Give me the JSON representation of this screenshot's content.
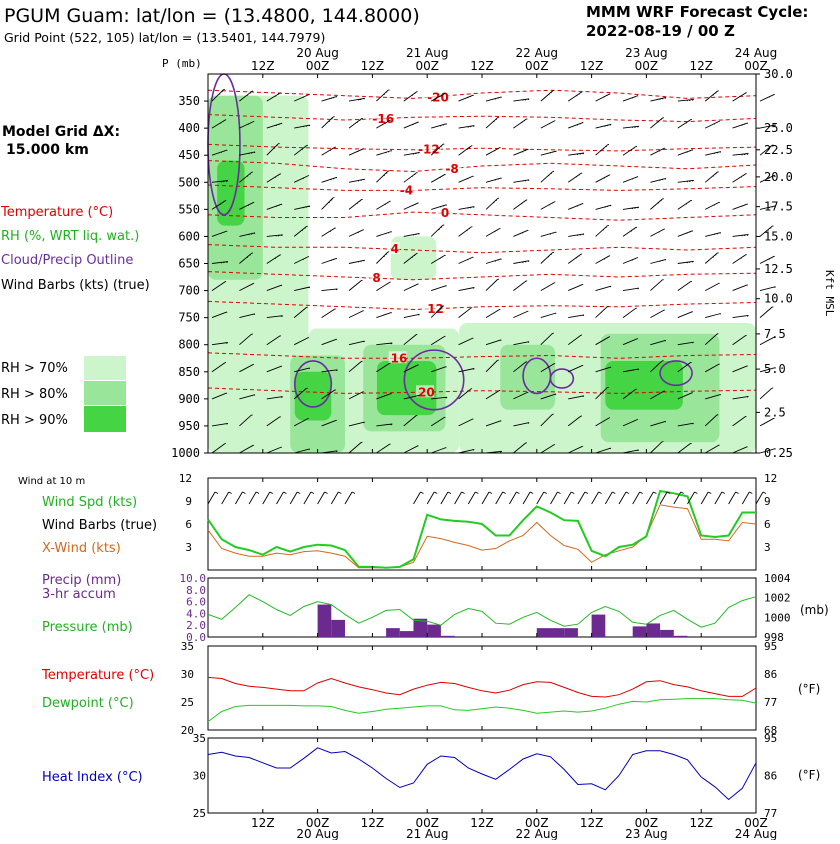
{
  "header": {
    "station_title": "PGUM Guam:  lat/lon = (13.4800, 144.8000)",
    "grid_point": "Grid Point (522, 105) lat/lon = (13.5401, 144.7979)",
    "model_title": "MMM WRF Forecast Cycle:",
    "cycle": "2022-08-19 / 00  Z",
    "model_grid_label": "Model Grid ΔX:",
    "model_grid_value": "15.000 km"
  },
  "legend": {
    "temperature": "Temperature (°C)",
    "rh": "RH (%, WRT liq. wat.)",
    "cloud": "Cloud/Precip Outline",
    "barbs": "Wind Barbs (kts) (true)",
    "rh70": "RH > 70%",
    "rh80": "RH > 80%",
    "rh90": "RH > 90%"
  },
  "colors": {
    "temperature": "#e00000",
    "rh70": "#ccf5cc",
    "rh80": "#99e599",
    "rh90": "#44d444",
    "cloud": "#6a2ca0",
    "wind_spd": "#22cc22",
    "xwind": "#d2691e",
    "precip": "#6a2a8e",
    "pressure": "#22bb22",
    "dewpoint": "#22cc22",
    "heat_index": "#0000bb"
  },
  "time_axis": {
    "hour_labels": [
      "12Z",
      "00Z",
      "12Z",
      "00Z",
      "12Z",
      "00Z",
      "12Z",
      "00Z",
      "12Z",
      "00Z"
    ],
    "hour_positions": [
      12,
      24,
      36,
      48,
      60,
      72,
      84,
      96,
      108,
      120
    ],
    "date_labels": [
      "20 Aug",
      "21 Aug",
      "22 Aug",
      "23 Aug",
      "24 Aug"
    ],
    "date_positions": [
      24,
      48,
      72,
      96,
      120
    ],
    "range": [
      0,
      120
    ]
  },
  "chart_data": [
    {
      "type": "heatmap",
      "name": "sounding",
      "xrange": [
        0,
        120
      ],
      "ylabel": "P (mb)",
      "right_label": "Kft MSL",
      "pressure_ticks": [
        350,
        400,
        450,
        500,
        550,
        600,
        650,
        700,
        750,
        800,
        850,
        900,
        950,
        1000
      ],
      "height_labels": [
        "30.0",
        "25.0",
        "22.5",
        "20.0",
        "17.5",
        "15.0",
        "12.5",
        "10.0",
        "7.5",
        "5.0",
        "2.5",
        "0.25"
      ],
      "height_label_pressures": [
        300,
        400,
        440,
        490,
        545,
        600,
        660,
        715,
        780,
        845,
        925,
        1000
      ],
      "temperature_contours": [
        {
          "label": "-20",
          "p": [
            330,
            335,
            340,
            345,
            335,
            330,
            335,
            345,
            340
          ],
          "label_t": 48
        },
        {
          "label": "-16",
          "p": [
            375,
            380,
            385,
            380,
            378,
            380,
            385,
            388,
            382
          ],
          "label_t": 36
        },
        {
          "label": "-12",
          "p": [
            430,
            435,
            438,
            440,
            437,
            440,
            442,
            438,
            435
          ],
          "label_t": 46
        },
        {
          "label": "-8",
          "p": [
            460,
            465,
            475,
            480,
            470,
            465,
            470,
            475,
            468
          ],
          "label_t": 52
        },
        {
          "label": "-4",
          "p": [
            505,
            510,
            515,
            515,
            510,
            512,
            515,
            512,
            508
          ],
          "label_t": 42
        },
        {
          "label": "0",
          "p": [
            560,
            565,
            565,
            555,
            560,
            565,
            570,
            565,
            560
          ],
          "label_t": 51
        },
        {
          "label": "4",
          "p": [
            615,
            620,
            620,
            625,
            630,
            625,
            620,
            625,
            620
          ],
          "label_t": 40
        },
        {
          "label": "8",
          "p": [
            665,
            670,
            675,
            680,
            675,
            670,
            675,
            670,
            668
          ],
          "label_t": 36
        },
        {
          "label": "12",
          "p": [
            720,
            725,
            730,
            735,
            730,
            728,
            730,
            725,
            722
          ],
          "label_t": 48
        },
        {
          "label": "16",
          "p": [
            815,
            820,
            825,
            825,
            822,
            820,
            825,
            820,
            818
          ],
          "label_t": 40
        },
        {
          "label": "20",
          "p": [
            880,
            885,
            890,
            888,
            885,
            887,
            890,
            886,
            884
          ],
          "label_t": 46
        }
      ],
      "contour_times": [
        0,
        15,
        30,
        45,
        60,
        75,
        90,
        105,
        120
      ],
      "rh_regions": [
        {
          "level": 70,
          "t0": 0,
          "t1": 22,
          "p0": 340,
          "p1": 1000
        },
        {
          "level": 70,
          "t0": 22,
          "t1": 55,
          "p0": 770,
          "p1": 1000
        },
        {
          "level": 70,
          "t0": 55,
          "t1": 120,
          "p0": 760,
          "p1": 1000
        },
        {
          "level": 70,
          "t0": 40,
          "t1": 50,
          "p0": 600,
          "p1": 680
        },
        {
          "level": 80,
          "t0": 0,
          "t1": 12,
          "p0": 340,
          "p1": 680
        },
        {
          "level": 80,
          "t0": 18,
          "t1": 30,
          "p0": 820,
          "p1": 1000
        },
        {
          "level": 80,
          "t0": 34,
          "t1": 52,
          "p0": 800,
          "p1": 960
        },
        {
          "level": 80,
          "t0": 64,
          "t1": 76,
          "p0": 800,
          "p1": 920
        },
        {
          "level": 80,
          "t0": 86,
          "t1": 112,
          "p0": 780,
          "p1": 980
        },
        {
          "level": 90,
          "t0": 2,
          "t1": 8,
          "p0": 460,
          "p1": 580
        },
        {
          "level": 90,
          "t0": 19,
          "t1": 27,
          "p0": 850,
          "p1": 940
        },
        {
          "level": 90,
          "t0": 37,
          "t1": 50,
          "p0": 830,
          "p1": 930
        },
        {
          "level": 90,
          "t0": 87,
          "t1": 104,
          "p0": 830,
          "p1": 920
        }
      ],
      "cloud_outlines": [
        {
          "t0": 0,
          "t1": 7,
          "p0": 300,
          "p1": 560
        },
        {
          "t0": 19,
          "t1": 27,
          "p0": 830,
          "p1": 915
        },
        {
          "t0": 43,
          "t1": 56,
          "p0": 810,
          "p1": 920
        },
        {
          "t0": 69,
          "t1": 75,
          "p0": 825,
          "p1": 890
        },
        {
          "t0": 75,
          "t1": 80,
          "p0": 845,
          "p1": 880
        },
        {
          "t0": 99,
          "t1": 106,
          "p0": 830,
          "p1": 875
        }
      ],
      "barb_times": [
        0,
        6,
        12,
        18,
        24,
        30,
        36,
        42,
        48,
        54,
        60,
        66,
        72,
        78,
        84,
        90,
        96,
        102,
        108,
        114,
        120
      ],
      "barb_pressures": [
        350,
        400,
        450,
        500,
        550,
        600,
        650,
        700,
        750,
        800,
        850,
        900,
        950,
        1000
      ],
      "barb_speed_low": 10,
      "barb_speed_high": 25
    },
    {
      "type": "line",
      "name": "wind",
      "title": "Wind at 10 m",
      "label_spd": "Wind Spd (kts)",
      "label_barbs": "Wind Barbs (true)",
      "label_xwind": "X-Wind (kts)",
      "ylim": [
        0,
        12
      ],
      "y_ticks": [
        3,
        6,
        9,
        12
      ],
      "x": [
        0,
        3,
        6,
        9,
        12,
        15,
        18,
        21,
        24,
        27,
        30,
        33,
        36,
        39,
        42,
        45,
        48,
        51,
        54,
        57,
        60,
        63,
        66,
        69,
        72,
        75,
        78,
        81,
        84,
        87,
        90,
        93,
        96,
        99,
        102,
        105,
        108,
        111,
        114,
        117,
        120
      ],
      "series": [
        {
          "name": "Wind Spd (kts)",
          "values": [
            6.6,
            4,
            3,
            2.6,
            2,
            3,
            2.4,
            3,
            3.3,
            3.2,
            2.6,
            0.4,
            0.4,
            0.3,
            0.4,
            1.4,
            7.2,
            6.6,
            6.4,
            6.3,
            6,
            4.5,
            4.5,
            6.5,
            8.3,
            7.5,
            6.5,
            6.4,
            2.5,
            1.8,
            3,
            3.3,
            4.4,
            10.3,
            10,
            9.6,
            4.5,
            4.3,
            4.5,
            7.5,
            7.5
          ]
        },
        {
          "name": "X-Wind (kts)",
          "values": [
            5.2,
            2.8,
            2.2,
            1.8,
            1.8,
            2.2,
            2,
            2.4,
            2.5,
            2.2,
            1.8,
            0.3,
            0.3,
            0.3,
            0.4,
            1,
            4.4,
            4.1,
            3.6,
            3.2,
            2.6,
            2.8,
            3.8,
            4.5,
            6.2,
            4.5,
            3.2,
            2.7,
            1,
            2,
            2.5,
            3,
            4.5,
            8.5,
            8.2,
            8,
            4,
            4,
            3.8,
            6.2,
            6
          ]
        }
      ]
    },
    {
      "type": "bar",
      "name": "precip_pressure",
      "label_precip": "Precip (mm)",
      "label_accum": "3-hr accum",
      "label_pressure": "Pressure (mb)",
      "unit_right": "(mb)",
      "precip_ylim": [
        0,
        10
      ],
      "precip_ticks": [
        "0.0",
        "2.0",
        "4.0",
        "6.0",
        "8.0",
        "10.0"
      ],
      "pressure_ylim": [
        998,
        1004
      ],
      "pressure_ticks": [
        "998",
        "1000",
        "1002",
        "1004"
      ],
      "precip_bars": [
        {
          "t": 25.5,
          "v": 5.5
        },
        {
          "t": 28.5,
          "v": 2.9
        },
        {
          "t": 40.5,
          "v": 1.5
        },
        {
          "t": 43.5,
          "v": 1
        },
        {
          "t": 46.5,
          "v": 3.1
        },
        {
          "t": 49.5,
          "v": 2.1
        },
        {
          "t": 52.5,
          "v": 0.2
        },
        {
          "t": 73.5,
          "v": 1.5
        },
        {
          "t": 76.5,
          "v": 1.5
        },
        {
          "t": 79.5,
          "v": 1.5
        },
        {
          "t": 85.5,
          "v": 3.8
        },
        {
          "t": 94.5,
          "v": 1.8
        },
        {
          "t": 97.5,
          "v": 2.3
        },
        {
          "t": 100.5,
          "v": 1.2
        },
        {
          "t": 103.5,
          "v": 0.2
        }
      ],
      "pressure_x": [
        0,
        3,
        6,
        9,
        12,
        15,
        18,
        21,
        24,
        27,
        30,
        33,
        36,
        39,
        42,
        45,
        48,
        51,
        54,
        57,
        60,
        63,
        66,
        69,
        72,
        75,
        78,
        81,
        84,
        87,
        90,
        93,
        96,
        99,
        102,
        105,
        108,
        111,
        114,
        117,
        120
      ],
      "pressure_values": [
        1000.3,
        999.8,
        1001.0,
        1002.3,
        1001.6,
        1000.8,
        1000.2,
        1001.1,
        1001.6,
        1001.3,
        1000.3,
        999.4,
        1000.0,
        1000.7,
        1000.8,
        999.7,
        999.6,
        999.2,
        1000.3,
        1000.9,
        1000.6,
        999.4,
        999.3,
        1000.0,
        1000.5,
        999.7,
        999.1,
        999.3,
        1000.5,
        1001.1,
        1000.6,
        999.5,
        999.3,
        1000.2,
        1000.7,
        999.8,
        999.0,
        999.4,
        1001.0,
        1001.7,
        1002.1
      ]
    },
    {
      "type": "line",
      "name": "temp_dew",
      "label_temp": "Temperature (°C)",
      "label_dew": "Dewpoint (°C)",
      "unit_right": "(°F)",
      "ylim": [
        20,
        35
      ],
      "y_ticks": [
        "20",
        "25",
        "30",
        "35"
      ],
      "y_right_ticks": [
        "68",
        "77",
        "86",
        "95"
      ],
      "x": [
        0,
        3,
        6,
        9,
        12,
        15,
        18,
        21,
        24,
        27,
        30,
        33,
        36,
        39,
        42,
        45,
        48,
        51,
        54,
        57,
        60,
        63,
        66,
        69,
        72,
        75,
        78,
        81,
        84,
        87,
        90,
        93,
        96,
        99,
        102,
        105,
        108,
        111,
        114,
        117,
        120
      ],
      "series": [
        {
          "name": "Temperature (°C)",
          "values": [
            29.4,
            29.2,
            28.3,
            27.8,
            27.6,
            27.3,
            27.0,
            27.0,
            28.4,
            29.2,
            28.4,
            27.7,
            27.2,
            26.6,
            26.3,
            27.3,
            28.0,
            28.5,
            28.3,
            27.6,
            27.0,
            26.6,
            27.1,
            28.1,
            28.6,
            28.5,
            27.6,
            26.7,
            26.0,
            25.9,
            26.3,
            27.3,
            28.6,
            28.8,
            28.1,
            27.7,
            27.0,
            26.5,
            26.0,
            26.0,
            27.5
          ]
        },
        {
          "name": "Dewpoint (°C)",
          "values": [
            21.5,
            23.3,
            24.2,
            24.4,
            24.4,
            24.4,
            24.4,
            24.3,
            24.3,
            24.2,
            23.5,
            23.0,
            23.3,
            23.7,
            23.9,
            24.1,
            24.3,
            24.3,
            23.6,
            23.5,
            23.8,
            24.1,
            23.9,
            23.5,
            23.0,
            23.2,
            23.4,
            23.2,
            23.4,
            23.9,
            24.6,
            25.1,
            25.0,
            25.4,
            25.5,
            25.6,
            25.6,
            25.6,
            25.4,
            25.3,
            24.8
          ]
        }
      ]
    },
    {
      "type": "line",
      "name": "heat_index",
      "label": "Heat Index (°C)",
      "unit_right": "(°F)",
      "ylim": [
        25,
        35
      ],
      "y_ticks": [
        "25",
        "30",
        "35"
      ],
      "y_right_ticks": [
        "77",
        "86",
        "95"
      ],
      "x": [
        0,
        3,
        6,
        9,
        12,
        15,
        18,
        21,
        24,
        27,
        30,
        33,
        36,
        39,
        42,
        45,
        48,
        51,
        54,
        57,
        60,
        63,
        66,
        69,
        72,
        75,
        78,
        81,
        84,
        87,
        90,
        93,
        96,
        99,
        102,
        105,
        108,
        111,
        114,
        117,
        120
      ],
      "series": [
        {
          "name": "Heat Index (°C)",
          "values": [
            32.8,
            33.1,
            32.6,
            32.4,
            31.7,
            31.0,
            31.0,
            32.3,
            33.7,
            33.0,
            33.2,
            32.2,
            31.0,
            29.6,
            28.4,
            29.0,
            31.5,
            32.6,
            32.4,
            31.0,
            30.2,
            29.5,
            30.8,
            32.2,
            32.9,
            32.5,
            30.8,
            28.8,
            28.9,
            28.1,
            30.0,
            32.8,
            33.3,
            33.3,
            32.8,
            32.1,
            29.8,
            28.5,
            26.8,
            28.3,
            31.7
          ]
        }
      ]
    }
  ]
}
